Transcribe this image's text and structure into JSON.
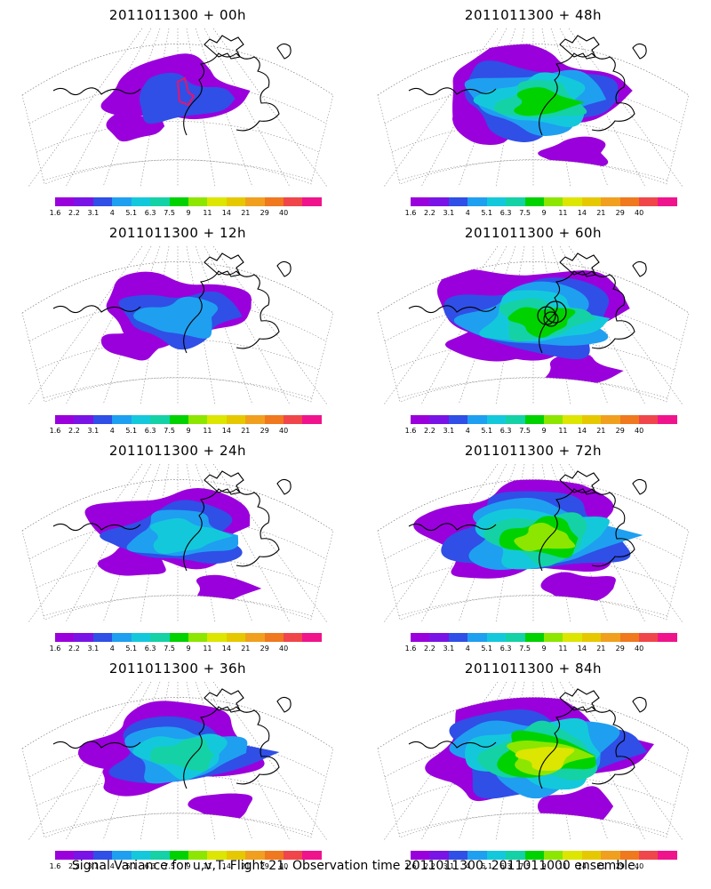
{
  "panels": [
    {
      "title": "2011011300 + 00h",
      "level": 0.25,
      "box": true,
      "circles": false
    },
    {
      "title": "2011011300 + 48h",
      "level": 0.72,
      "box": false,
      "circles": false
    },
    {
      "title": "2011011300 + 12h",
      "level": 0.38,
      "box": false,
      "circles": false
    },
    {
      "title": "2011011300 + 60h",
      "level": 0.8,
      "box": false,
      "circles": true
    },
    {
      "title": "2011011300 + 24h",
      "level": 0.5,
      "box": false,
      "circles": false
    },
    {
      "title": "2011011300 + 72h",
      "level": 0.88,
      "box": false,
      "circles": false
    },
    {
      "title": "2011011300 + 36h",
      "level": 0.6,
      "box": false,
      "circles": false
    },
    {
      "title": "2011011300 + 84h",
      "level": 0.95,
      "box": false,
      "circles": false
    }
  ],
  "colorbar": {
    "colors": [
      "#9a00dc",
      "#7a14e6",
      "#2f4fe6",
      "#1f9ff0",
      "#14c8dc",
      "#14d2a5",
      "#00d200",
      "#8ce600",
      "#dce600",
      "#e6c800",
      "#f0a01e",
      "#f0781e",
      "#f0464b",
      "#f0148c"
    ],
    "labels": [
      "1.6",
      "2.2",
      "3.1",
      "4",
      "5.1",
      "6.3",
      "7.5",
      "9",
      "11",
      "14",
      "21",
      "29",
      "40"
    ]
  },
  "footer": "Signal Variance for u,v,T. Flight 21. Observation time 2011011300. 2011011000 ensemble."
}
